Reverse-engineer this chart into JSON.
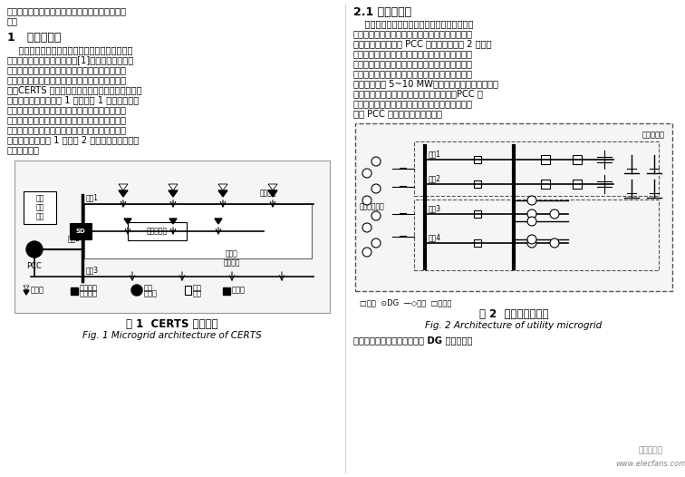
{
  "bg_color": "#ffffff",
  "text_color": "#000000",
  "left_col": {
    "top_text": [
      "析结果总结出微网网架结构设计的原则、要素与流",
      "程。"
    ],
    "section1_title": "1   微电网分类",
    "section1_body": [
      "    微网的分类标准有很多，可以根据其复杂程度、",
      "功能、结构等进行划分。文献[1]讨论了基于微网结",
      "构的微电网类型，根据微电源连接方式以及微网的",
      "控制方式将微网分为并联式结构微网和串联结构微",
      "网。CERTS 提出的微网结构，也体现了微网的并联",
      "和串联连接方式。如图 1 示，馈线 1 上各个微电源",
      "均连接在一条馈线上，馈线始端再接入微网母线，",
      "这种连接关系即为串联结构；而同时各个微电源与",
      "附近负荷共同组成的小型发电系统，接入母线构成",
      "并联结构，即馈线 1 和馈线 2 上的微电源连接方式",
      "为并联连接。"
    ],
    "fig1_caption": "图 1  CERTS 微网结构",
    "fig1_subcaption": "Fig. 1 Microgrid architecture of CERTS"
  },
  "right_col": {
    "section21_title": "2.1 系统级微网",
    "section21_body": [
      "    系统级微网结构由母线和多条馈线呈辐射状组",
      "成，每条馈线可分层接入大量分布式电源和就地负",
      "荷，网架可以经多个 PCC 接入电网。如图 2 所示，",
      "微网由两条汇流母线和四条馈线组成，每条馈线可",
      "分层接入大量的分布式电源：三联供系统、光伏系",
      "统、风机系统、储能系统等，单个分布式电源的最",
      "大容量可达到 5~10 MW；汇流母线上可接入小型常",
      "规发电系统。当电网或降压变压器故障时，PCC 开",
      "关跳开，微网进入孤岛运行；待电网侧恢复正常，",
      "闭合 PCC 开关，微网并网运行。"
    ],
    "fig2_caption": "图 2  系统级微网结构",
    "fig2_subcaption": "Fig. 2 Architecture of utility microgrid",
    "bottom_text": "系统级微网结构允许各种不同 DG 和储能系统"
  },
  "watermark_line1": "电子发烧友",
  "watermark_line2": "www.elecfans.com"
}
